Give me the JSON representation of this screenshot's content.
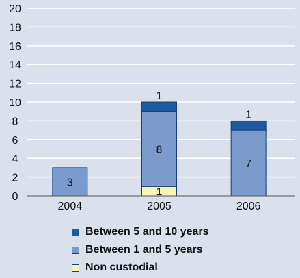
{
  "chart_data": {
    "type": "bar",
    "stacked": true,
    "categories": [
      "2004",
      "2005",
      "2006"
    ],
    "series": [
      {
        "name": "Non custodial",
        "values": [
          0,
          1,
          0
        ],
        "color": "#f8f4b4"
      },
      {
        "name": "Between 1 and 5 years",
        "values": [
          3,
          8,
          7
        ],
        "color": "#7b9bcc"
      },
      {
        "name": "Between 5 and 10 years",
        "values": [
          0,
          1,
          1
        ],
        "color": "#1d5aa0"
      }
    ],
    "data_labels": [
      [
        "",
        "1",
        ""
      ],
      [
        "3",
        "8",
        "7"
      ],
      [
        "",
        "1",
        "1"
      ]
    ],
    "yticks": [
      "0",
      "2",
      "4",
      "6",
      "8",
      "10",
      "12",
      "14",
      "16",
      "18",
      "20"
    ],
    "ylim": [
      0,
      20
    ],
    "grid": true,
    "legend_position": "bottom"
  },
  "legend": [
    {
      "label": "Between 5 and 10 years",
      "color": "#1d5aa0"
    },
    {
      "label": "Between 1 and 5 years",
      "color": "#7b9bcc"
    },
    {
      "label": "Non custodial",
      "color": "#f8f4b4"
    }
  ]
}
